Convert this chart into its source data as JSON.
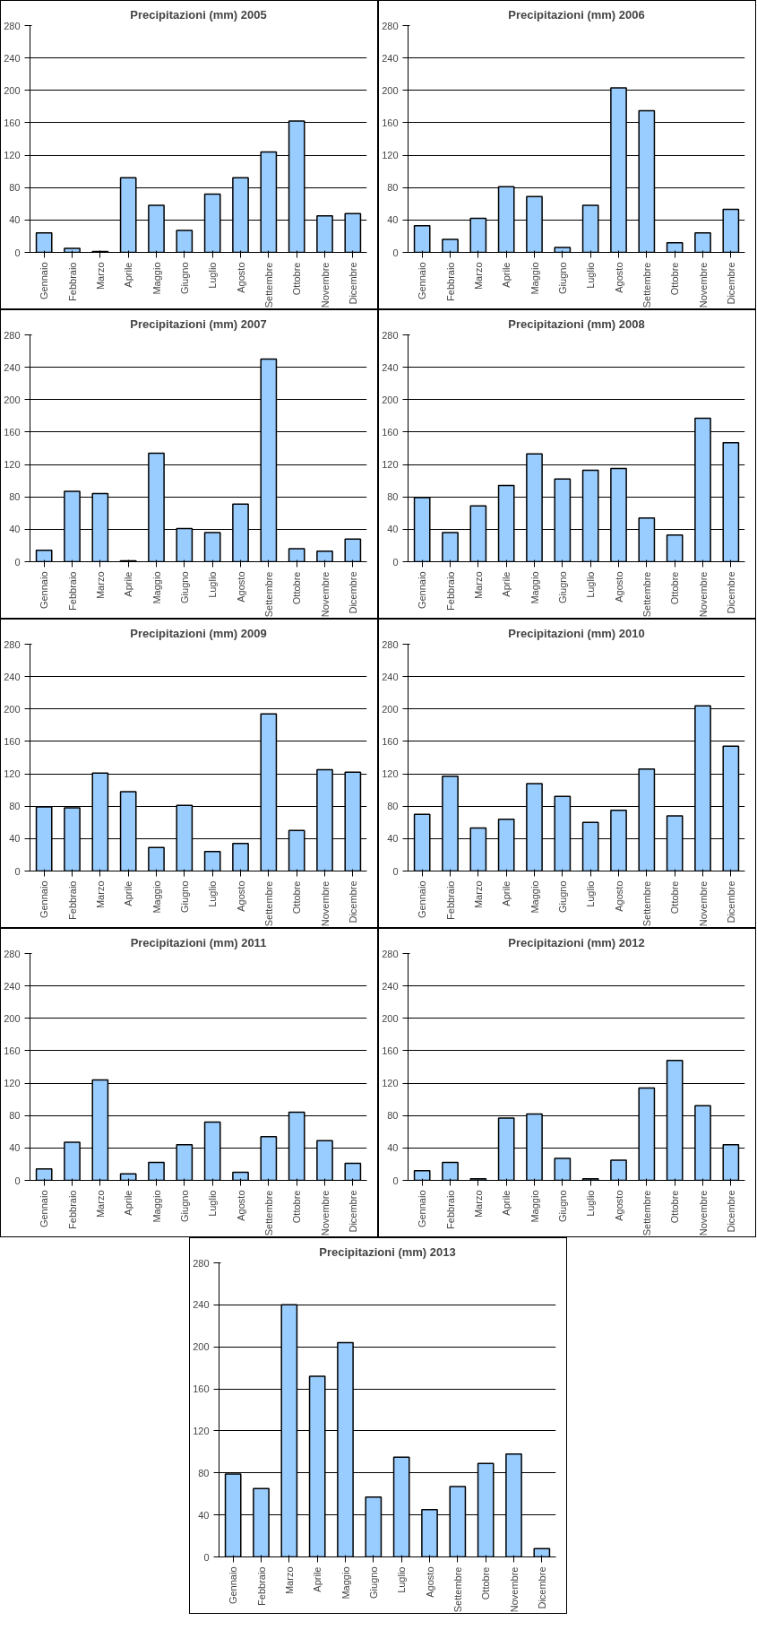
{
  "chart_data": [
    {
      "type": "bar",
      "title": "Precipitazioni (mm) 2005",
      "categories": [
        "Gennaio",
        "Febbraio",
        "Marzo",
        "Aprile",
        "Maggio",
        "Giugno",
        "Luglio",
        "Agosto",
        "Settembre",
        "Ottobre",
        "Novembre",
        "Dicembre"
      ],
      "values": [
        24,
        5,
        1,
        92,
        58,
        27,
        72,
        92,
        124,
        162,
        45,
        48
      ],
      "color": "#99ccff",
      "ylim": [
        0,
        280
      ],
      "yticks": [
        0,
        40,
        80,
        120,
        160,
        200,
        240,
        280
      ],
      "grid": "y"
    },
    {
      "type": "bar",
      "title": "Precipitazioni (mm) 2006",
      "categories": [
        "Gennaio",
        "Febbraio",
        "Marzo",
        "Aprile",
        "Maggio",
        "Giugno",
        "Luglio",
        "Agosto",
        "Settembre",
        "Ottobre",
        "Novembre",
        "Dicembre"
      ],
      "values": [
        33,
        16,
        42,
        81,
        69,
        6,
        58,
        203,
        175,
        12,
        24,
        53
      ],
      "color": "#99ccff",
      "ylim": [
        0,
        280
      ],
      "yticks": [
        0,
        40,
        80,
        120,
        160,
        200,
        240,
        280
      ],
      "grid": "y"
    },
    {
      "type": "bar",
      "title": "Precipitazioni (mm) 2007",
      "categories": [
        "Gennaio",
        "Febbraio",
        "Marzo",
        "Aprile",
        "Maggio",
        "Giugno",
        "Luglio",
        "Agosto",
        "Settembre",
        "Ottobre",
        "Novembre",
        "Dicembre"
      ],
      "values": [
        14,
        87,
        84,
        1,
        134,
        41,
        36,
        71,
        250,
        16,
        13,
        28
      ],
      "color": "#99ccff",
      "ylim": [
        0,
        280
      ],
      "yticks": [
        0,
        40,
        80,
        120,
        160,
        200,
        240,
        280
      ],
      "grid": "y"
    },
    {
      "type": "bar",
      "title": "Precipitazioni (mm) 2008",
      "categories": [
        "Gennaio",
        "Febbraio",
        "Marzo",
        "Aprile",
        "Maggio",
        "Giugno",
        "Luglio",
        "Agosto",
        "Settembre",
        "Ottobre",
        "Novembre",
        "Dicembre"
      ],
      "values": [
        79,
        36,
        69,
        94,
        133,
        102,
        113,
        115,
        54,
        33,
        177,
        147
      ],
      "color": "#99ccff",
      "ylim": [
        0,
        280
      ],
      "yticks": [
        0,
        40,
        80,
        120,
        160,
        200,
        240,
        280
      ],
      "grid": "y"
    },
    {
      "type": "bar",
      "title": "Precipitazioni (mm) 2009",
      "categories": [
        "Gennaio",
        "Febbraio",
        "Marzo",
        "Aprile",
        "Maggio",
        "Giugno",
        "Luglio",
        "Agosto",
        "Settembre",
        "Ottobre",
        "Novembre",
        "Dicembre"
      ],
      "values": [
        79,
        78,
        121,
        98,
        29,
        81,
        24,
        34,
        194,
        50,
        125,
        122
      ],
      "color": "#99ccff",
      "ylim": [
        0,
        280
      ],
      "yticks": [
        0,
        40,
        80,
        120,
        160,
        200,
        240,
        280
      ],
      "grid": "y"
    },
    {
      "type": "bar",
      "title": "Precipitazioni (mm) 2010",
      "categories": [
        "Gennaio",
        "Febbraio",
        "Marzo",
        "Aprile",
        "Maggio",
        "Giugno",
        "Luglio",
        "Agosto",
        "Settembre",
        "Ottobre",
        "Novembre",
        "Dicembre"
      ],
      "values": [
        70,
        117,
        53,
        64,
        108,
        92,
        60,
        75,
        126,
        68,
        204,
        154
      ],
      "color": "#99ccff",
      "ylim": [
        0,
        280
      ],
      "yticks": [
        0,
        40,
        80,
        120,
        160,
        200,
        240,
        280
      ],
      "grid": "y"
    },
    {
      "type": "bar",
      "title": "Precipitazioni (mm) 2011",
      "categories": [
        "Gennaio",
        "Febbraio",
        "Marzo",
        "Aprile",
        "Maggio",
        "Giugno",
        "Luglio",
        "Agosto",
        "Settembre",
        "Ottobre",
        "Novembre",
        "Dicembre"
      ],
      "values": [
        14,
        47,
        124,
        8,
        22,
        44,
        72,
        10,
        54,
        84,
        49,
        21
      ],
      "color": "#99ccff",
      "ylim": [
        0,
        280
      ],
      "yticks": [
        0,
        40,
        80,
        120,
        160,
        200,
        240,
        280
      ],
      "grid": "y"
    },
    {
      "type": "bar",
      "title": "Precipitazioni (mm) 2012",
      "categories": [
        "Gennaio",
        "Febbraio",
        "Marzo",
        "Aprile",
        "Maggio",
        "Giugno",
        "Luglio",
        "Agosto",
        "Settembre",
        "Ottobre",
        "Novembre",
        "Dicembre"
      ],
      "values": [
        12,
        22,
        2,
        77,
        82,
        27,
        2,
        25,
        114,
        148,
        92,
        44
      ],
      "color": "#99ccff",
      "ylim": [
        0,
        280
      ],
      "yticks": [
        0,
        40,
        80,
        120,
        160,
        200,
        240,
        280
      ],
      "grid": "y"
    },
    {
      "type": "bar",
      "title": "Precipitazioni (mm) 2013",
      "categories": [
        "Gennaio",
        "Febbraio",
        "Marzo",
        "Aprile",
        "Maggio",
        "Giugno",
        "Luglio",
        "Agosto",
        "Settembre",
        "Ottobre",
        "Novembre",
        "Dicembre"
      ],
      "values": [
        79,
        65,
        240,
        172,
        204,
        57,
        95,
        45,
        67,
        89,
        98,
        8
      ],
      "color": "#99ccff",
      "ylim": [
        0,
        280
      ],
      "yticks": [
        0,
        40,
        80,
        120,
        160,
        200,
        240,
        280
      ],
      "grid": "y"
    }
  ]
}
